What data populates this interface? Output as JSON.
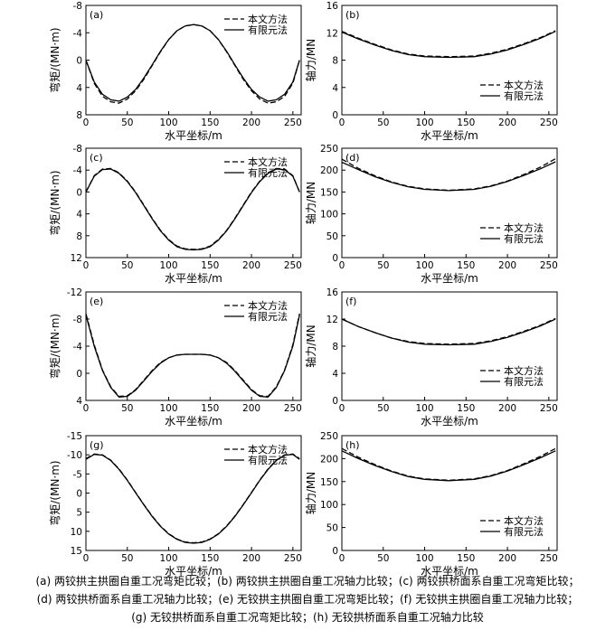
{
  "figure": {
    "caption_lines": [
      "(a) 两铰拱主拱圈自重工况弯矩比较；(b) 两铰拱主拱圈自重工况轴力比较；(c) 两铰拱桥面系自重工况弯矩比较；",
      "(d) 两铰拱桥面系自重工况轴力比较；(e) 无铰拱主拱圈自重工况弯矩比较；(f) 无铰拱主拱圈自重工况轴力比较；",
      "(g) 无铰拱桥面系自重工况弯矩比较；(h) 无铰拱桥面系自重工况轴力比较"
    ]
  },
  "chart_data": [
    {
      "panel_label": "(a)",
      "type": "line",
      "xlabel": "水平坐标/m",
      "ylabel": "弯矩/(MN·m)",
      "xlim": [
        0,
        260
      ],
      "ylim": [
        -8,
        8
      ],
      "y_inverted": true,
      "x_ticks": [
        0,
        50,
        100,
        150,
        200,
        250
      ],
      "y_ticks": [
        -8,
        -4,
        0,
        4,
        8
      ],
      "legend_position": "top-right",
      "series": [
        {
          "name": "本文方法",
          "style": "dashed",
          "x": [
            0,
            10,
            20,
            30,
            40,
            50,
            60,
            70,
            80,
            90,
            100,
            110,
            120,
            130,
            140,
            150,
            160,
            170,
            180,
            190,
            200,
            210,
            220,
            230,
            240,
            250,
            258
          ],
          "y": [
            0,
            3.4,
            5.3,
            6.1,
            6.3,
            5.7,
            4.5,
            2.8,
            0.8,
            -1.2,
            -3.0,
            -4.3,
            -5.0,
            -5.2,
            -5.0,
            -4.3,
            -3.0,
            -1.2,
            0.8,
            2.8,
            4.5,
            5.7,
            6.3,
            6.1,
            5.3,
            3.4,
            0
          ]
        },
        {
          "name": "有限元法",
          "style": "solid",
          "x": [
            0,
            10,
            20,
            30,
            40,
            50,
            60,
            70,
            80,
            90,
            100,
            110,
            120,
            130,
            140,
            150,
            160,
            170,
            180,
            190,
            200,
            210,
            220,
            230,
            240,
            250,
            258
          ],
          "y": [
            0,
            3.2,
            5.0,
            5.8,
            6.0,
            5.4,
            4.3,
            2.6,
            0.7,
            -1.3,
            -3.0,
            -4.3,
            -5.0,
            -5.2,
            -5.0,
            -4.3,
            -3.0,
            -1.3,
            0.7,
            2.6,
            4.3,
            5.4,
            6.0,
            5.8,
            5.0,
            3.2,
            0
          ]
        }
      ]
    },
    {
      "panel_label": "(b)",
      "type": "line",
      "xlabel": "水平坐标/m",
      "ylabel": "轴力/MN",
      "xlim": [
        0,
        260
      ],
      "ylim": [
        0,
        16
      ],
      "y_inverted": false,
      "x_ticks": [
        0,
        50,
        100,
        150,
        200,
        250
      ],
      "y_ticks": [
        0,
        4,
        8,
        12,
        16
      ],
      "legend_position": "bottom-right",
      "series": [
        {
          "name": "本文方法",
          "style": "dashed",
          "x": [
            0,
            20,
            40,
            60,
            80,
            100,
            129,
            160,
            180,
            200,
            220,
            240,
            258
          ],
          "y": [
            12.2,
            11.2,
            10.3,
            9.5,
            8.9,
            8.6,
            8.5,
            8.6,
            9.0,
            9.6,
            10.4,
            11.3,
            12.3
          ]
        },
        {
          "name": "有限元法",
          "style": "solid",
          "x": [
            0,
            20,
            40,
            60,
            80,
            100,
            129,
            160,
            180,
            200,
            220,
            240,
            258
          ],
          "y": [
            12.1,
            11.1,
            10.2,
            9.4,
            8.8,
            8.5,
            8.4,
            8.5,
            8.9,
            9.5,
            10.3,
            11.2,
            12.2
          ]
        }
      ]
    },
    {
      "panel_label": "(c)",
      "type": "line",
      "xlabel": "水平坐标/m",
      "ylabel": "弯矩/(MN·m)",
      "xlim": [
        0,
        260
      ],
      "ylim": [
        -8,
        12
      ],
      "y_inverted": true,
      "x_ticks": [
        0,
        50,
        100,
        150,
        200,
        250
      ],
      "y_ticks": [
        -8,
        -4,
        0,
        4,
        8,
        12
      ],
      "legend_position": "top-right",
      "series": [
        {
          "name": "本文方法",
          "style": "dashed",
          "x": [
            0,
            10,
            20,
            30,
            40,
            50,
            60,
            70,
            80,
            90,
            100,
            110,
            120,
            130,
            140,
            150,
            160,
            170,
            180,
            190,
            200,
            210,
            220,
            230,
            240,
            250,
            258
          ],
          "y": [
            0,
            -3.0,
            -4.2,
            -4.3,
            -3.5,
            -2.0,
            0,
            2.4,
            4.8,
            7.0,
            8.7,
            9.9,
            10.4,
            10.5,
            10.4,
            9.9,
            8.7,
            7.0,
            4.8,
            2.4,
            0,
            -2.0,
            -3.5,
            -4.3,
            -4.2,
            -3.0,
            0
          ]
        },
        {
          "name": "有限元法",
          "style": "solid",
          "x": [
            0,
            10,
            20,
            30,
            40,
            50,
            60,
            70,
            80,
            90,
            100,
            110,
            120,
            130,
            140,
            150,
            160,
            170,
            180,
            190,
            200,
            210,
            220,
            230,
            240,
            250,
            258
          ],
          "y": [
            0,
            -2.9,
            -4.1,
            -4.2,
            -3.4,
            -1.9,
            0.1,
            2.5,
            4.9,
            7.1,
            8.8,
            10.0,
            10.5,
            10.6,
            10.5,
            10.0,
            8.8,
            7.1,
            4.9,
            2.5,
            0.1,
            -1.9,
            -3.4,
            -4.2,
            -4.1,
            -2.9,
            0
          ]
        }
      ]
    },
    {
      "panel_label": "(d)",
      "type": "line",
      "xlabel": "水平坐标/m",
      "ylabel": "轴力/MN",
      "xlim": [
        0,
        260
      ],
      "ylim": [
        0,
        250
      ],
      "y_inverted": false,
      "x_ticks": [
        0,
        50,
        100,
        150,
        200,
        250
      ],
      "y_ticks": [
        0,
        50,
        100,
        150,
        200,
        250
      ],
      "legend_position": "bottom-right",
      "series": [
        {
          "name": "本文方法",
          "style": "dashed",
          "x": [
            0,
            20,
            40,
            60,
            80,
            100,
            129,
            160,
            180,
            200,
            220,
            240,
            258
          ],
          "y": [
            225,
            204,
            187,
            173,
            163,
            157,
            154,
            157,
            164,
            175,
            190,
            207,
            226
          ]
        },
        {
          "name": "有限元法",
          "style": "solid",
          "x": [
            0,
            20,
            40,
            60,
            80,
            100,
            129,
            160,
            180,
            200,
            220,
            240,
            258
          ],
          "y": [
            218,
            201,
            185,
            172,
            162,
            156,
            153,
            156,
            163,
            174,
            188,
            203,
            219
          ]
        }
      ]
    },
    {
      "panel_label": "(e)",
      "type": "line",
      "xlabel": "水平坐标/m",
      "ylabel": "弯矩/(MN·m)",
      "xlim": [
        0,
        260
      ],
      "ylim": [
        -12,
        4
      ],
      "y_inverted": true,
      "x_ticks": [
        0,
        50,
        100,
        150,
        200,
        250
      ],
      "y_ticks": [
        -12,
        -8,
        -4,
        0,
        4
      ],
      "legend_position": "top-right",
      "series": [
        {
          "name": "本文方法",
          "style": "dashed",
          "x": [
            0,
            10,
            20,
            30,
            40,
            50,
            60,
            70,
            80,
            90,
            100,
            110,
            120,
            130,
            140,
            150,
            160,
            170,
            180,
            190,
            200,
            210,
            220,
            230,
            240,
            250,
            258
          ],
          "y": [
            -8.8,
            -4.2,
            -0.5,
            2.0,
            3.4,
            3.3,
            2.4,
            1.0,
            -0.4,
            -1.6,
            -2.3,
            -2.7,
            -2.8,
            -2.8,
            -2.8,
            -2.7,
            -2.3,
            -1.6,
            -0.4,
            1.0,
            2.4,
            3.3,
            3.4,
            2.0,
            -0.5,
            -4.2,
            -8.8
          ]
        },
        {
          "name": "有限元法",
          "style": "solid",
          "x": [
            0,
            10,
            20,
            30,
            40,
            50,
            60,
            70,
            80,
            90,
            100,
            110,
            120,
            130,
            140,
            150,
            160,
            170,
            180,
            190,
            200,
            210,
            220,
            230,
            240,
            250,
            258
          ],
          "y": [
            -8.6,
            -4.0,
            -0.4,
            2.1,
            3.5,
            3.4,
            2.5,
            1.1,
            -0.3,
            -1.5,
            -2.3,
            -2.7,
            -2.8,
            -2.8,
            -2.8,
            -2.7,
            -2.3,
            -1.5,
            -0.3,
            1.1,
            2.5,
            3.4,
            3.5,
            2.1,
            -0.4,
            -4.0,
            -8.6
          ]
        }
      ]
    },
    {
      "panel_label": "(f)",
      "type": "line",
      "xlabel": "水平坐标/m",
      "ylabel": "轴力/MN",
      "xlim": [
        0,
        260
      ],
      "ylim": [
        0,
        16
      ],
      "y_inverted": false,
      "x_ticks": [
        0,
        50,
        100,
        150,
        200,
        250
      ],
      "y_ticks": [
        0,
        4,
        8,
        12,
        16
      ],
      "legend_position": "bottom-right",
      "series": [
        {
          "name": "本文方法",
          "style": "dashed",
          "x": [
            0,
            20,
            40,
            60,
            80,
            100,
            129,
            160,
            180,
            200,
            220,
            240,
            258
          ],
          "y": [
            12.0,
            10.9,
            10.0,
            9.2,
            8.7,
            8.4,
            8.3,
            8.4,
            8.8,
            9.4,
            10.2,
            11.1,
            12.1
          ]
        },
        {
          "name": "有限元法",
          "style": "solid",
          "x": [
            0,
            20,
            40,
            60,
            80,
            100,
            129,
            160,
            180,
            200,
            220,
            240,
            258
          ],
          "y": [
            12.0,
            10.9,
            10.0,
            9.2,
            8.6,
            8.3,
            8.2,
            8.3,
            8.7,
            9.3,
            10.1,
            11.0,
            12.0
          ]
        }
      ]
    },
    {
      "panel_label": "(g)",
      "type": "line",
      "xlabel": "水平坐标/m",
      "ylabel": "弯矩/(MN·m)",
      "xlim": [
        0,
        260
      ],
      "ylim": [
        -15,
        15
      ],
      "y_inverted": true,
      "x_ticks": [
        0,
        50,
        100,
        150,
        200,
        250
      ],
      "y_ticks": [
        -15,
        -10,
        -5,
        0,
        5,
        10,
        15
      ],
      "legend_position": "top-right",
      "series": [
        {
          "name": "本文方法",
          "style": "dashed",
          "x": [
            0,
            10,
            20,
            30,
            40,
            50,
            60,
            70,
            80,
            90,
            100,
            110,
            120,
            130,
            140,
            150,
            160,
            170,
            180,
            190,
            200,
            210,
            220,
            230,
            240,
            250,
            258
          ],
          "y": [
            -9.0,
            -10.2,
            -10.0,
            -8.6,
            -6.3,
            -3.4,
            -0.2,
            3.0,
            6.0,
            8.6,
            10.6,
            12.0,
            12.8,
            13.0,
            12.8,
            12.0,
            10.6,
            8.6,
            6.0,
            3.0,
            -0.2,
            -3.4,
            -6.3,
            -8.6,
            -10.0,
            -10.2,
            -9.0
          ]
        },
        {
          "name": "有限元法",
          "style": "solid",
          "x": [
            0,
            10,
            20,
            30,
            40,
            50,
            60,
            70,
            80,
            90,
            100,
            110,
            120,
            130,
            140,
            150,
            160,
            170,
            180,
            190,
            200,
            210,
            220,
            230,
            240,
            250,
            258
          ],
          "y": [
            -8.8,
            -10.1,
            -9.9,
            -8.5,
            -6.2,
            -3.3,
            -0.1,
            3.1,
            6.1,
            8.7,
            10.7,
            12.1,
            12.9,
            13.1,
            12.9,
            12.1,
            10.7,
            8.7,
            6.1,
            3.1,
            -0.1,
            -3.3,
            -6.2,
            -8.5,
            -9.9,
            -10.1,
            -8.8
          ]
        }
      ]
    },
    {
      "panel_label": "(h)",
      "type": "line",
      "xlabel": "水平坐标/m",
      "ylabel": "轴力/MN",
      "xlim": [
        0,
        260
      ],
      "ylim": [
        0,
        250
      ],
      "y_inverted": false,
      "x_ticks": [
        0,
        50,
        100,
        150,
        200,
        250
      ],
      "y_ticks": [
        0,
        50,
        100,
        150,
        200,
        250
      ],
      "legend_position": "bottom-right",
      "series": [
        {
          "name": "本文方法",
          "style": "dashed",
          "x": [
            0,
            20,
            40,
            60,
            80,
            100,
            129,
            160,
            180,
            200,
            220,
            240,
            258
          ],
          "y": [
            222,
            203,
            187,
            173,
            162,
            156,
            153,
            156,
            163,
            174,
            189,
            205,
            222
          ]
        },
        {
          "name": "有限元法",
          "style": "solid",
          "x": [
            0,
            20,
            40,
            60,
            80,
            100,
            129,
            160,
            180,
            200,
            220,
            240,
            258
          ],
          "y": [
            217,
            200,
            185,
            172,
            161,
            155,
            152,
            155,
            162,
            173,
            187,
            202,
            217
          ]
        }
      ]
    }
  ]
}
